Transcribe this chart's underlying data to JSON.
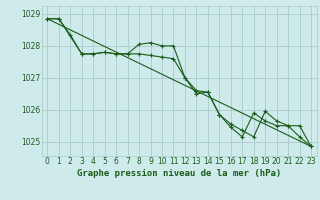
{
  "title": "Graphe pression niveau de la mer (hPa)",
  "background_color": "#ceeaea",
  "grid_color": "#aacccc",
  "line_color": "#1a5c1a",
  "xlim": [
    -0.5,
    23.5
  ],
  "ylim": [
    1024.55,
    1029.25
  ],
  "yticks": [
    1025,
    1026,
    1027,
    1028,
    1029
  ],
  "xticks": [
    0,
    1,
    2,
    3,
    4,
    5,
    6,
    7,
    8,
    9,
    10,
    11,
    12,
    13,
    14,
    15,
    16,
    17,
    18,
    19,
    20,
    21,
    22,
    23
  ],
  "series1_x": [
    0,
    1,
    2,
    3,
    4,
    5,
    6,
    7,
    8,
    9,
    10,
    11,
    12,
    13,
    14,
    15,
    16,
    17,
    18,
    19,
    20,
    21,
    22,
    23
  ],
  "series1_y": [
    1028.85,
    1028.85,
    1028.35,
    1027.75,
    1027.75,
    1027.8,
    1027.75,
    1027.75,
    1028.05,
    1028.1,
    1028.0,
    1028.0,
    1027.0,
    1026.5,
    1026.55,
    1025.85,
    1025.45,
    1025.15,
    1025.9,
    1025.65,
    1025.5,
    1025.5,
    1025.15,
    1024.85
  ],
  "series2_x": [
    0,
    1,
    3,
    4,
    5,
    6,
    7,
    8,
    9,
    10,
    11,
    12,
    13,
    14,
    15,
    16,
    17,
    18,
    19,
    20,
    21,
    22,
    23
  ],
  "series2_y": [
    1028.85,
    1028.85,
    1027.75,
    1027.75,
    1027.8,
    1027.75,
    1027.75,
    1027.75,
    1027.7,
    1027.65,
    1027.6,
    1027.0,
    1026.6,
    1026.55,
    1025.85,
    1025.55,
    1025.35,
    1025.15,
    1025.95,
    1025.65,
    1025.5,
    1025.5,
    1024.85
  ],
  "series3_x": [
    0,
    23
  ],
  "series3_y": [
    1028.85,
    1024.85
  ],
  "title_fontsize": 6.5,
  "tick_fontsize": 5.5
}
